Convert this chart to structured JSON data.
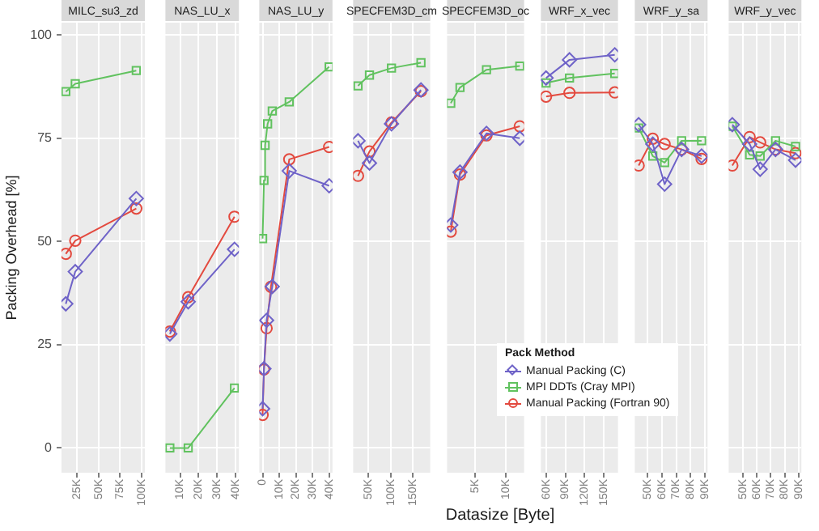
{
  "chart_data": [
    {
      "type": "line",
      "title": "MILC_su3_zd",
      "ylabel": "Packing Overhead [%]",
      "x": [
        12000,
        23000,
        94000
      ],
      "xlim": [
        7000,
        104000
      ],
      "xticks": [
        {
          "value": 25000,
          "label": "25K"
        },
        {
          "value": 50000,
          "label": "50K"
        },
        {
          "value": 75000,
          "label": "75K"
        },
        {
          "value": 100000,
          "label": "100K"
        }
      ],
      "ylim": [
        -6,
        103
      ],
      "yticks": [
        0,
        25,
        50,
        75,
        100
      ],
      "grid": true,
      "series": [
        {
          "color": "#6f63c8",
          "marker": "diamond",
          "values": [
            34.9,
            42.7,
            60.4
          ]
        },
        {
          "color": "#61c25f",
          "marker": "square",
          "values": [
            86.3,
            88.2,
            91.4
          ]
        },
        {
          "color": "#e34a3f",
          "marker": "circle",
          "values": [
            47,
            50.2,
            58
          ]
        }
      ]
    },
    {
      "type": "line",
      "title": "NAS_LU_x",
      "x": [
        4400,
        14400,
        39600
      ],
      "xlim": [
        2000,
        42000
      ],
      "xticks": [
        {
          "value": 10000,
          "label": "10K"
        },
        {
          "value": 20000,
          "label": "20K"
        },
        {
          "value": 30000,
          "label": "30K"
        },
        {
          "value": 40000,
          "label": "40K"
        }
      ],
      "ylim": [
        -6,
        103
      ],
      "yticks": [
        0,
        25,
        50,
        75,
        100
      ],
      "grid": true,
      "tick_labels": "x",
      "series": [
        {
          "color": "#6f63c8",
          "marker": "diamond",
          "values": [
            27.6,
            35.4,
            48.1
          ]
        },
        {
          "color": "#61c25f",
          "marker": "square",
          "values": [
            0,
            0,
            14.5
          ]
        },
        {
          "color": "#e34a3f",
          "marker": "circle",
          "values": [
            28.2,
            36.5,
            56
          ]
        }
      ]
    },
    {
      "type": "line",
      "title": "NAS_LU_y",
      "xlim": [
        -2000,
        42000
      ],
      "xticks": [
        0,
        {
          "value": 10000,
          "label": "10K"
        },
        {
          "value": 20000,
          "label": "20K"
        },
        {
          "value": 30000,
          "label": "30K"
        },
        {
          "value": 40000,
          "label": "40K"
        }
      ],
      "ylim": [
        -6,
        103
      ],
      "yticks": [
        0,
        25,
        50,
        75,
        100
      ],
      "grid": true,
      "tick_labels": "x",
      "series": [
        {
          "color": "#6f63c8",
          "marker": "diamond",
          "x": [
            0,
            800,
            2400,
            5800,
            16000,
            40000
          ],
          "values": [
            9.5,
            19.2,
            30.9,
            39.1,
            67.1,
            63.5
          ]
        },
        {
          "color": "#61c25f",
          "marker": "square",
          "x": [
            0,
            800,
            1500,
            3000,
            5800,
            16000,
            40000
          ],
          "values": [
            50.7,
            64.8,
            73.3,
            78.5,
            81.6,
            83.8,
            92.3
          ]
        },
        {
          "color": "#e34a3f",
          "marker": "circle",
          "x": [
            0,
            800,
            2400,
            5000,
            16000,
            40000
          ],
          "values": [
            8,
            19,
            29,
            39,
            69.9,
            72.9
          ]
        }
      ]
    },
    {
      "type": "line",
      "title": "SPECFEM3D_cm",
      "x": [
        26000,
        52000,
        102000,
        169000
      ],
      "xlim": [
        15000,
        190000
      ],
      "xticks": [
        {
          "value": 50000,
          "label": "50K"
        },
        {
          "value": 100000,
          "label": "100K"
        },
        {
          "value": 150000,
          "label": "150K"
        }
      ],
      "ylim": [
        -6,
        103
      ],
      "yticks": [
        0,
        25,
        50,
        75,
        100
      ],
      "grid": true,
      "tick_labels": "x",
      "series": [
        {
          "color": "#6f63c8",
          "marker": "diamond",
          "values": [
            74.4,
            69,
            78.5,
            86.7
          ]
        },
        {
          "color": "#61c25f",
          "marker": "square",
          "values": [
            87.7,
            90.3,
            92,
            93.3
          ]
        },
        {
          "color": "#e34a3f",
          "marker": "circle",
          "values": [
            65.9,
            71.8,
            78.8,
            86.4
          ]
        }
      ]
    },
    {
      "type": "line",
      "title": "SPECFEM3D_oc",
      "xlabel": "Datasize [Byte]",
      "legend": "bottom",
      "legend_title": "Pack Method",
      "x": [
        1100,
        2600,
        6900,
        12300
      ],
      "xlim": [
        500,
        13000
      ],
      "xticks": [
        {
          "value": 5000,
          "label": "5K"
        },
        {
          "value": 10000,
          "label": "10K"
        }
      ],
      "ylim": [
        -6,
        103
      ],
      "yticks": [
        0,
        25,
        50,
        75,
        100
      ],
      "grid": true,
      "tick_labels": "x",
      "series": [
        {
          "name": "Manual Packing (C)",
          "color": "#6f63c8",
          "marker": "diamond",
          "values": [
            54,
            66.8,
            76.2,
            75
          ]
        },
        {
          "name": "MPI DDTs (Cray MPI)",
          "color": "#61c25f",
          "marker": "square",
          "values": [
            83.5,
            87.3,
            91.6,
            92.5
          ]
        },
        {
          "name": "Manual Packing (Fortran 90)",
          "color": "#e34a3f",
          "marker": "circle",
          "values": [
            52.4,
            66.2,
            75.7,
            77.9
          ]
        }
      ]
    },
    {
      "type": "line",
      "title": "WRF_x_vec",
      "x": [
        60000,
        96500,
        167000
      ],
      "xlim": [
        52000,
        172000
      ],
      "xticks": [
        {
          "value": 60000,
          "label": "60K"
        },
        {
          "value": 90000,
          "label": "90K"
        },
        {
          "value": 120000,
          "label": "120K"
        },
        {
          "value": 150000,
          "label": "150K"
        }
      ],
      "ylim": [
        -6,
        103
      ],
      "yticks": [
        0,
        25,
        50,
        75,
        100
      ],
      "grid": true,
      "tick_labels": "x",
      "series": [
        {
          "color": "#6f63c8",
          "marker": "diamond",
          "values": [
            89.6,
            94,
            95.2
          ]
        },
        {
          "color": "#61c25f",
          "marker": "square",
          "values": [
            88.4,
            89.6,
            90.7
          ]
        },
        {
          "color": "#e34a3f",
          "marker": "circle",
          "values": [
            85.1,
            86,
            86.1
          ]
        }
      ]
    },
    {
      "type": "line",
      "title": "WRF_y_sa",
      "x": [
        43700,
        53600,
        61900,
        73800,
        87800
      ],
      "xlim": [
        41000,
        92000
      ],
      "xticks": [
        {
          "value": 50000,
          "label": "50K"
        },
        {
          "value": 60000,
          "label": "60K"
        },
        {
          "value": 70000,
          "label": "70K"
        },
        {
          "value": 80000,
          "label": "80K"
        },
        {
          "value": 90000,
          "label": "90K"
        }
      ],
      "ylim": [
        -6,
        103
      ],
      "yticks": [
        0,
        25,
        50,
        75,
        100
      ],
      "grid": true,
      "tick_labels": "x",
      "series": [
        {
          "color": "#6f63c8",
          "marker": "diamond",
          "values": [
            78.3,
            73.6,
            63.9,
            72.3,
            70.7
          ]
        },
        {
          "color": "#61c25f",
          "marker": "square",
          "values": [
            77.5,
            70.7,
            69.1,
            74.4,
            74.4
          ]
        },
        {
          "color": "#e34a3f",
          "marker": "circle",
          "values": [
            68.4,
            74.9,
            73.6,
            72.3,
            70
          ]
        }
      ]
    },
    {
      "type": "line",
      "title": "WRF_y_vec",
      "x": [
        42600,
        55000,
        62500,
        73500,
        87800
      ],
      "xlim": [
        40000,
        92000
      ],
      "xticks": [
        {
          "value": 50000,
          "label": "50K"
        },
        {
          "value": 60000,
          "label": "60K"
        },
        {
          "value": 70000,
          "label": "70K"
        },
        {
          "value": 80000,
          "label": "80K"
        },
        {
          "value": 90000,
          "label": "90K"
        }
      ],
      "ylim": [
        -6,
        103
      ],
      "yticks": [
        0,
        25,
        50,
        75,
        100
      ],
      "grid": true,
      "tick_labels": "x",
      "series": [
        {
          "color": "#6f63c8",
          "marker": "diamond",
          "values": [
            78.3,
            73.6,
            67.5,
            72.3,
            69.7
          ]
        },
        {
          "color": "#61c25f",
          "marker": "square",
          "values": [
            77.9,
            71,
            70.7,
            74.4,
            73
          ]
        },
        {
          "color": "#e34a3f",
          "marker": "circle",
          "values": [
            68.4,
            75.3,
            74,
            72.3,
            71.4
          ]
        }
      ]
    }
  ]
}
